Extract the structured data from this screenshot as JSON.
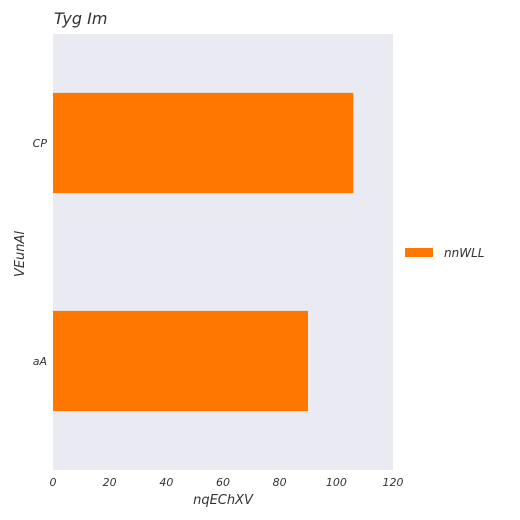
{
  "chart_data": {
    "type": "bar",
    "orientation": "horizontal",
    "title": "Tyg Im",
    "xlabel": "nqEChXV",
    "ylabel": "VEunAl",
    "categories": [
      "aA",
      "CP"
    ],
    "series": [
      {
        "name": "nnWLL",
        "values": [
          90,
          106
        ],
        "color": "#ff7700"
      }
    ],
    "xlim": [
      0,
      120
    ],
    "xticks": [
      0,
      20,
      40,
      60,
      80,
      100,
      120
    ],
    "grid": false,
    "legend_position": "right",
    "plot_background": "#eaeaf2"
  }
}
